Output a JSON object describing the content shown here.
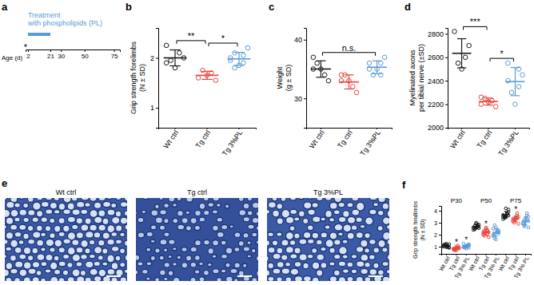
{
  "chart_data": [
    {
      "type": "timeline",
      "panel_label": "a",
      "title": [
        "Treatment",
        "with phospholipids (PL)"
      ],
      "x_label": "Age (d)",
      "xlim": [
        0,
        80
      ],
      "xticks": [
        2,
        21,
        30,
        50,
        75
      ],
      "treatment": [
        2,
        21
      ],
      "color": "#5b9bd5",
      "annotation": {
        "text": "*",
        "x": 0
      }
    },
    {
      "type": "dot_plot",
      "panel_label": "b",
      "y_label": [
        "Grip strength forelimbs",
        "(N ± SD)"
      ],
      "categories": [
        "Wt ctrl",
        "Tg ctrl",
        "Tg 3%PL"
      ],
      "colors": [
        "#1a1a1a",
        "#e8453c",
        "#5b9bd5"
      ],
      "ylim": [
        0.6,
        2.6
      ],
      "yticks": [
        1,
        2
      ],
      "points": [
        [
          2.25,
          2.1,
          1.95,
          2.0,
          1.8,
          1.9
        ],
        [
          1.6,
          1.7,
          1.75,
          1.55,
          1.65
        ],
        [
          2.0,
          1.9,
          2.1,
          2.2,
          1.85,
          1.95,
          2.05,
          1.8
        ]
      ],
      "mean": [
        2.0,
        1.65,
        1.98
      ],
      "sd": [
        0.16,
        0.08,
        0.13
      ],
      "annotations": [
        {
          "text": "**",
          "from": "Wt ctrl",
          "to": "Tg ctrl"
        },
        {
          "text": "*",
          "from": "Tg ctrl",
          "to": "Tg 3%PL"
        }
      ]
    },
    {
      "type": "dot_plot",
      "panel_label": "c",
      "y_label": [
        "Weight",
        "(g ± SD)"
      ],
      "categories": [
        "Wt ctrl",
        "Tg ctrl",
        "Tg 3%PL"
      ],
      "colors": [
        "#1a1a1a",
        "#e8453c",
        "#5b9bd5"
      ],
      "ylim": [
        25,
        42
      ],
      "yticks": [
        30,
        40
      ],
      "points": [
        [
          35,
          34,
          36,
          33,
          35,
          37
        ],
        [
          33,
          32,
          34,
          31,
          33,
          34
        ],
        [
          35,
          36,
          34,
          37,
          35,
          36,
          34
        ]
      ],
      "mean": [
        35,
        32.8,
        35.3
      ],
      "sd": [
        1.4,
        1.2,
        1.1
      ],
      "annotations": [
        {
          "text": "n.s.",
          "from": "Wt ctrl",
          "to": "Tg 3%PL"
        }
      ]
    },
    {
      "type": "dot_plot",
      "panel_label": "d",
      "y_label": [
        "Myelinated axons",
        "per tibial nerve (±SD)"
      ],
      "categories": [
        "Wt ctrl",
        "Tg ctrl",
        "Tg 3%PL"
      ],
      "colors": [
        "#1a1a1a",
        "#e8453c",
        "#5b9bd5"
      ],
      "ylim": [
        2000,
        2850
      ],
      "yticks": [
        2000,
        2200,
        2400,
        2600,
        2800
      ],
      "points": [
        [
          2820,
          2600,
          2550,
          2700,
          2500
        ],
        [
          2200,
          2230,
          2250,
          2180,
          2220,
          2260
        ],
        [
          2400,
          2500,
          2300,
          2450,
          2200,
          2550,
          2350
        ]
      ],
      "mean": [
        2634,
        2223,
        2393
      ],
      "sd": [
        124,
        30,
        120
      ],
      "annotations": [
        {
          "text": "***",
          "from": "Wt ctrl",
          "to": "Tg ctrl"
        },
        {
          "text": "*",
          "from": "Tg ctrl",
          "to": "Tg 3%PL"
        }
      ]
    },
    {
      "type": "image",
      "panel_label": "e",
      "titles": [
        "Wt ctrl",
        "Tg ctrl",
        "Tg 3%PL"
      ]
    },
    {
      "type": "dot_plot",
      "panel_label": "f",
      "y_label": [
        "Grip strength hindlimbs",
        "(N ± SD)"
      ],
      "groups": [
        "P30",
        "P50",
        "P75"
      ],
      "categories": [
        "Wt ctrl",
        "Tg ctrl",
        "Tg 3% PL"
      ],
      "colors": [
        "#1a1a1a",
        "#e8453c",
        "#5b9bd5"
      ],
      "ylim": [
        0.4,
        4.4
      ],
      "yticks": [
        1,
        2,
        3,
        4
      ],
      "points": [
        [
          [
            1.0,
            1.1,
            1.2,
            0.95,
            1.05,
            1.15,
            1.0,
            1.1,
            0.9,
            1.25,
            1.05,
            1.0,
            1.1,
            1.2,
            0.95
          ],
          [
            0.8,
            0.9,
            0.7,
            0.85,
            1.0,
            0.75,
            0.9,
            0.8,
            0.95,
            0.7,
            0.85,
            1.1,
            0.8
          ],
          [
            1.0,
            1.1,
            0.9,
            1.2,
            1.05,
            0.95,
            1.15,
            1.0,
            1.1,
            0.85,
            1.25,
            1.0,
            1.05,
            0.9
          ]
        ],
        [
          [
            2.6,
            2.8,
            2.5,
            2.7,
            2.9,
            2.4,
            2.65,
            2.75,
            2.55,
            3.0,
            2.6,
            2.7,
            2.45,
            2.85,
            2.6
          ],
          [
            2.1,
            2.3,
            1.9,
            2.2,
            2.5,
            2.0,
            2.4,
            2.15,
            1.8,
            2.6,
            2.25,
            2.05,
            2.35
          ],
          [
            2.0,
            2.4,
            1.7,
            2.2,
            2.6,
            1.9,
            2.3,
            2.8,
            2.1,
            1.6,
            2.5,
            2.2,
            2.0,
            2.35
          ]
        ],
        [
          [
            3.5,
            3.7,
            3.4,
            3.9,
            3.6,
            3.3,
            3.8,
            3.55,
            4.1,
            3.45,
            3.65,
            3.75,
            3.5,
            3.6,
            4.2
          ],
          [
            3.2,
            3.4,
            3.0,
            3.5,
            3.3,
            3.1,
            3.6,
            3.25,
            2.9,
            3.45,
            3.35,
            3.8
          ],
          [
            3.0,
            3.3,
            2.7,
            3.5,
            3.1,
            2.9,
            3.6,
            3.2,
            2.6,
            3.4,
            3.0,
            3.8,
            2.8,
            3.15
          ]
        ]
      ],
      "mean": [
        [
          1.07,
          0.85,
          1.04
        ],
        [
          2.66,
          2.2,
          2.19
        ],
        [
          3.68,
          3.32,
          3.15
        ]
      ],
      "sd": [
        [
          0.1,
          0.11,
          0.11
        ],
        [
          0.17,
          0.23,
          0.33
        ],
        [
          0.25,
          0.24,
          0.34
        ]
      ],
      "annotations": [
        {
          "text": "*",
          "group": "P30",
          "category": "Tg ctrl"
        },
        {
          "text": "*",
          "group": "P30",
          "category": "Tg 3% PL"
        },
        {
          "text": "*",
          "group": "P50",
          "category": "Tg ctrl"
        },
        {
          "text": "*",
          "group": "P75",
          "category": "Tg ctrl"
        }
      ]
    }
  ]
}
